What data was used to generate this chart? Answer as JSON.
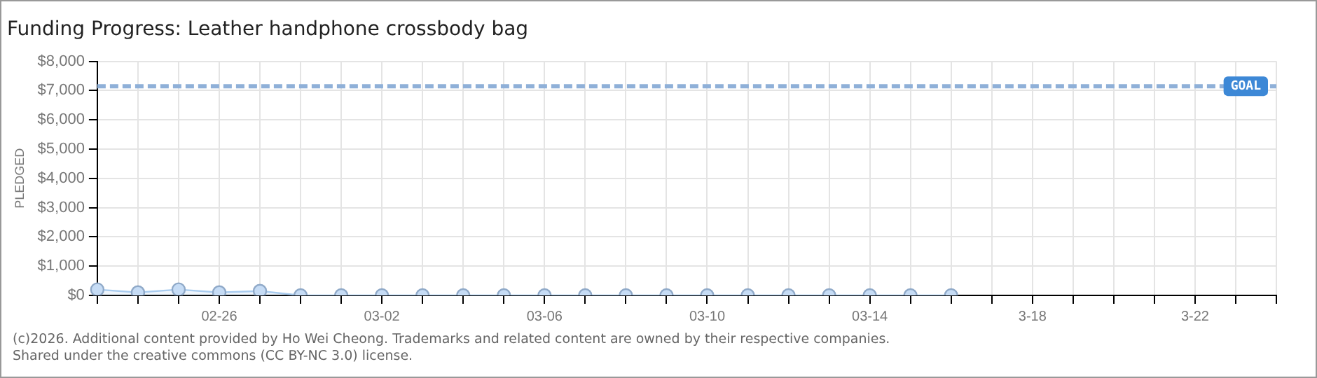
{
  "chart_data": {
    "type": "area",
    "title": "Funding Progress: Leather handphone crossbody bag",
    "ylabel": "PLEDGED",
    "categories": [
      null,
      null,
      null,
      "02-26",
      null,
      null,
      null,
      "03-02",
      null,
      null,
      null,
      "03-06",
      null,
      null,
      null,
      "03-10",
      null,
      null,
      null,
      "03-14",
      null,
      null,
      null,
      "3-18",
      null,
      null,
      null,
      "3-22",
      null,
      null
    ],
    "series": [
      {
        "color": "#a9ccef",
        "values": [
          200,
          100,
          200,
          100,
          150,
          0,
          0,
          0,
          0,
          0,
          0,
          0,
          0,
          0,
          0,
          0,
          0,
          0,
          0,
          0,
          0,
          0,
          null,
          null,
          null,
          null,
          null,
          null,
          null,
          null
        ]
      }
    ],
    "ylim": [
      0,
      8000
    ],
    "yticks": [
      {
        "value": 0,
        "label": "$0"
      },
      {
        "value": 1000,
        "label": "$1,000"
      },
      {
        "value": 2000,
        "label": "$2,000"
      },
      {
        "value": 3000,
        "label": "$3,000"
      },
      {
        "value": 4000,
        "label": "$4,000"
      },
      {
        "value": 5000,
        "label": "$5,000"
      },
      {
        "value": 6000,
        "label": "$6,000"
      },
      {
        "value": 7000,
        "label": "$7,000"
      },
      {
        "value": 8000,
        "label": "$8,000"
      }
    ],
    "ref_lines": [
      {
        "axis": "y",
        "value": 7150,
        "label": "GOAL",
        "color": "#8fb0d8",
        "line_style": "dashed"
      }
    ],
    "grid": true,
    "marker": "circle",
    "legend": false,
    "annotations": [
      "(c)2026. Additional content provided by Ho Wei Cheong. Trademarks and related content are owned by their respective companies.",
      "Shared under the creative commons (CC BY-NC 3.0) license."
    ]
  }
}
